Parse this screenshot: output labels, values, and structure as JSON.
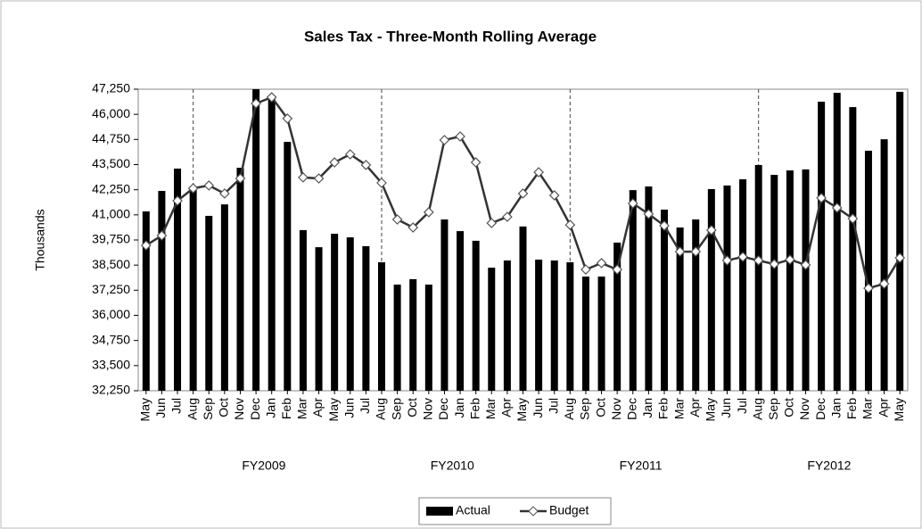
{
  "chart_data": {
    "type": "bar-line",
    "title": "Sales Tax - Three-Month Rolling Average",
    "y_label": "Thousands",
    "categories": [
      "May",
      "Jun",
      "Jul",
      "Aug",
      "Sep",
      "Oct",
      "Nov",
      "Dec",
      "Jan",
      "Feb",
      "Mar",
      "Apr",
      "May",
      "Jun",
      "Jul",
      "Aug",
      "Sep",
      "Oct",
      "Nov",
      "Dec",
      "Jan",
      "Feb",
      "Mar",
      "Apr",
      "May",
      "Jun",
      "Jul",
      "Aug",
      "Sep",
      "Oct",
      "Nov",
      "Dec",
      "Jan",
      "Feb",
      "Mar",
      "Apr",
      "May",
      "Jun",
      "Jul",
      "Aug",
      "Sep",
      "Oct",
      "Nov",
      "Dec",
      "Jan",
      "Feb",
      "Mar",
      "Apr",
      "May"
    ],
    "fiscal_years": [
      "FY2009",
      "FY2010",
      "FY2011",
      "FY2012"
    ],
    "series": [
      {
        "name": "Actual",
        "kind": "bar",
        "color": "#000000",
        "values": [
          41170,
          42190,
          43300,
          42370,
          40950,
          41520,
          43340,
          47250,
          46900,
          44630,
          40240,
          39390,
          40060,
          39880,
          39440,
          38640,
          37530,
          37800,
          37530,
          40770,
          40190,
          39710,
          38370,
          38730,
          40420,
          38770,
          38730,
          38640,
          37930,
          37930,
          39620,
          42230,
          42410,
          41260,
          40370,
          40770,
          42280,
          42460,
          42770,
          43480,
          42990,
          43210,
          43260,
          46630,
          47070,
          46360,
          44190,
          44760,
          47120
        ]
      },
      {
        "name": "Budget",
        "kind": "line",
        "color": "#333333",
        "values": [
          39480,
          39970,
          41700,
          42320,
          42460,
          42060,
          42810,
          46540,
          46850,
          45790,
          42860,
          42810,
          43610,
          44010,
          43480,
          42590,
          40770,
          40370,
          41130,
          44720,
          44900,
          43610,
          40590,
          40900,
          42060,
          43120,
          41970,
          40500,
          38280,
          38600,
          38280,
          41570,
          41040,
          40460,
          39170,
          39170,
          40240,
          38730,
          38910,
          38730,
          38550,
          38770,
          38510,
          41840,
          41350,
          40810,
          37350,
          37570,
          38860
        ]
      }
    ],
    "ylim": [
      32250,
      47250
    ],
    "yticks": [
      {
        "value": 32250,
        "label": "32,250"
      },
      {
        "value": 33500,
        "label": "33,500"
      },
      {
        "value": 34750,
        "label": "34,750"
      },
      {
        "value": 36000,
        "label": "36,000"
      },
      {
        "value": 37250,
        "label": "37,250"
      },
      {
        "value": 38500,
        "label": "38,500"
      },
      {
        "value": 39750,
        "label": "39,750"
      },
      {
        "value": 41000,
        "label": "41,000"
      },
      {
        "value": 42250,
        "label": "42,250"
      },
      {
        "value": 43500,
        "label": "43,500"
      },
      {
        "value": 44750,
        "label": "44,750"
      },
      {
        "value": 46000,
        "label": "46,000"
      },
      {
        "value": 47250,
        "label": "47,250"
      }
    ]
  }
}
